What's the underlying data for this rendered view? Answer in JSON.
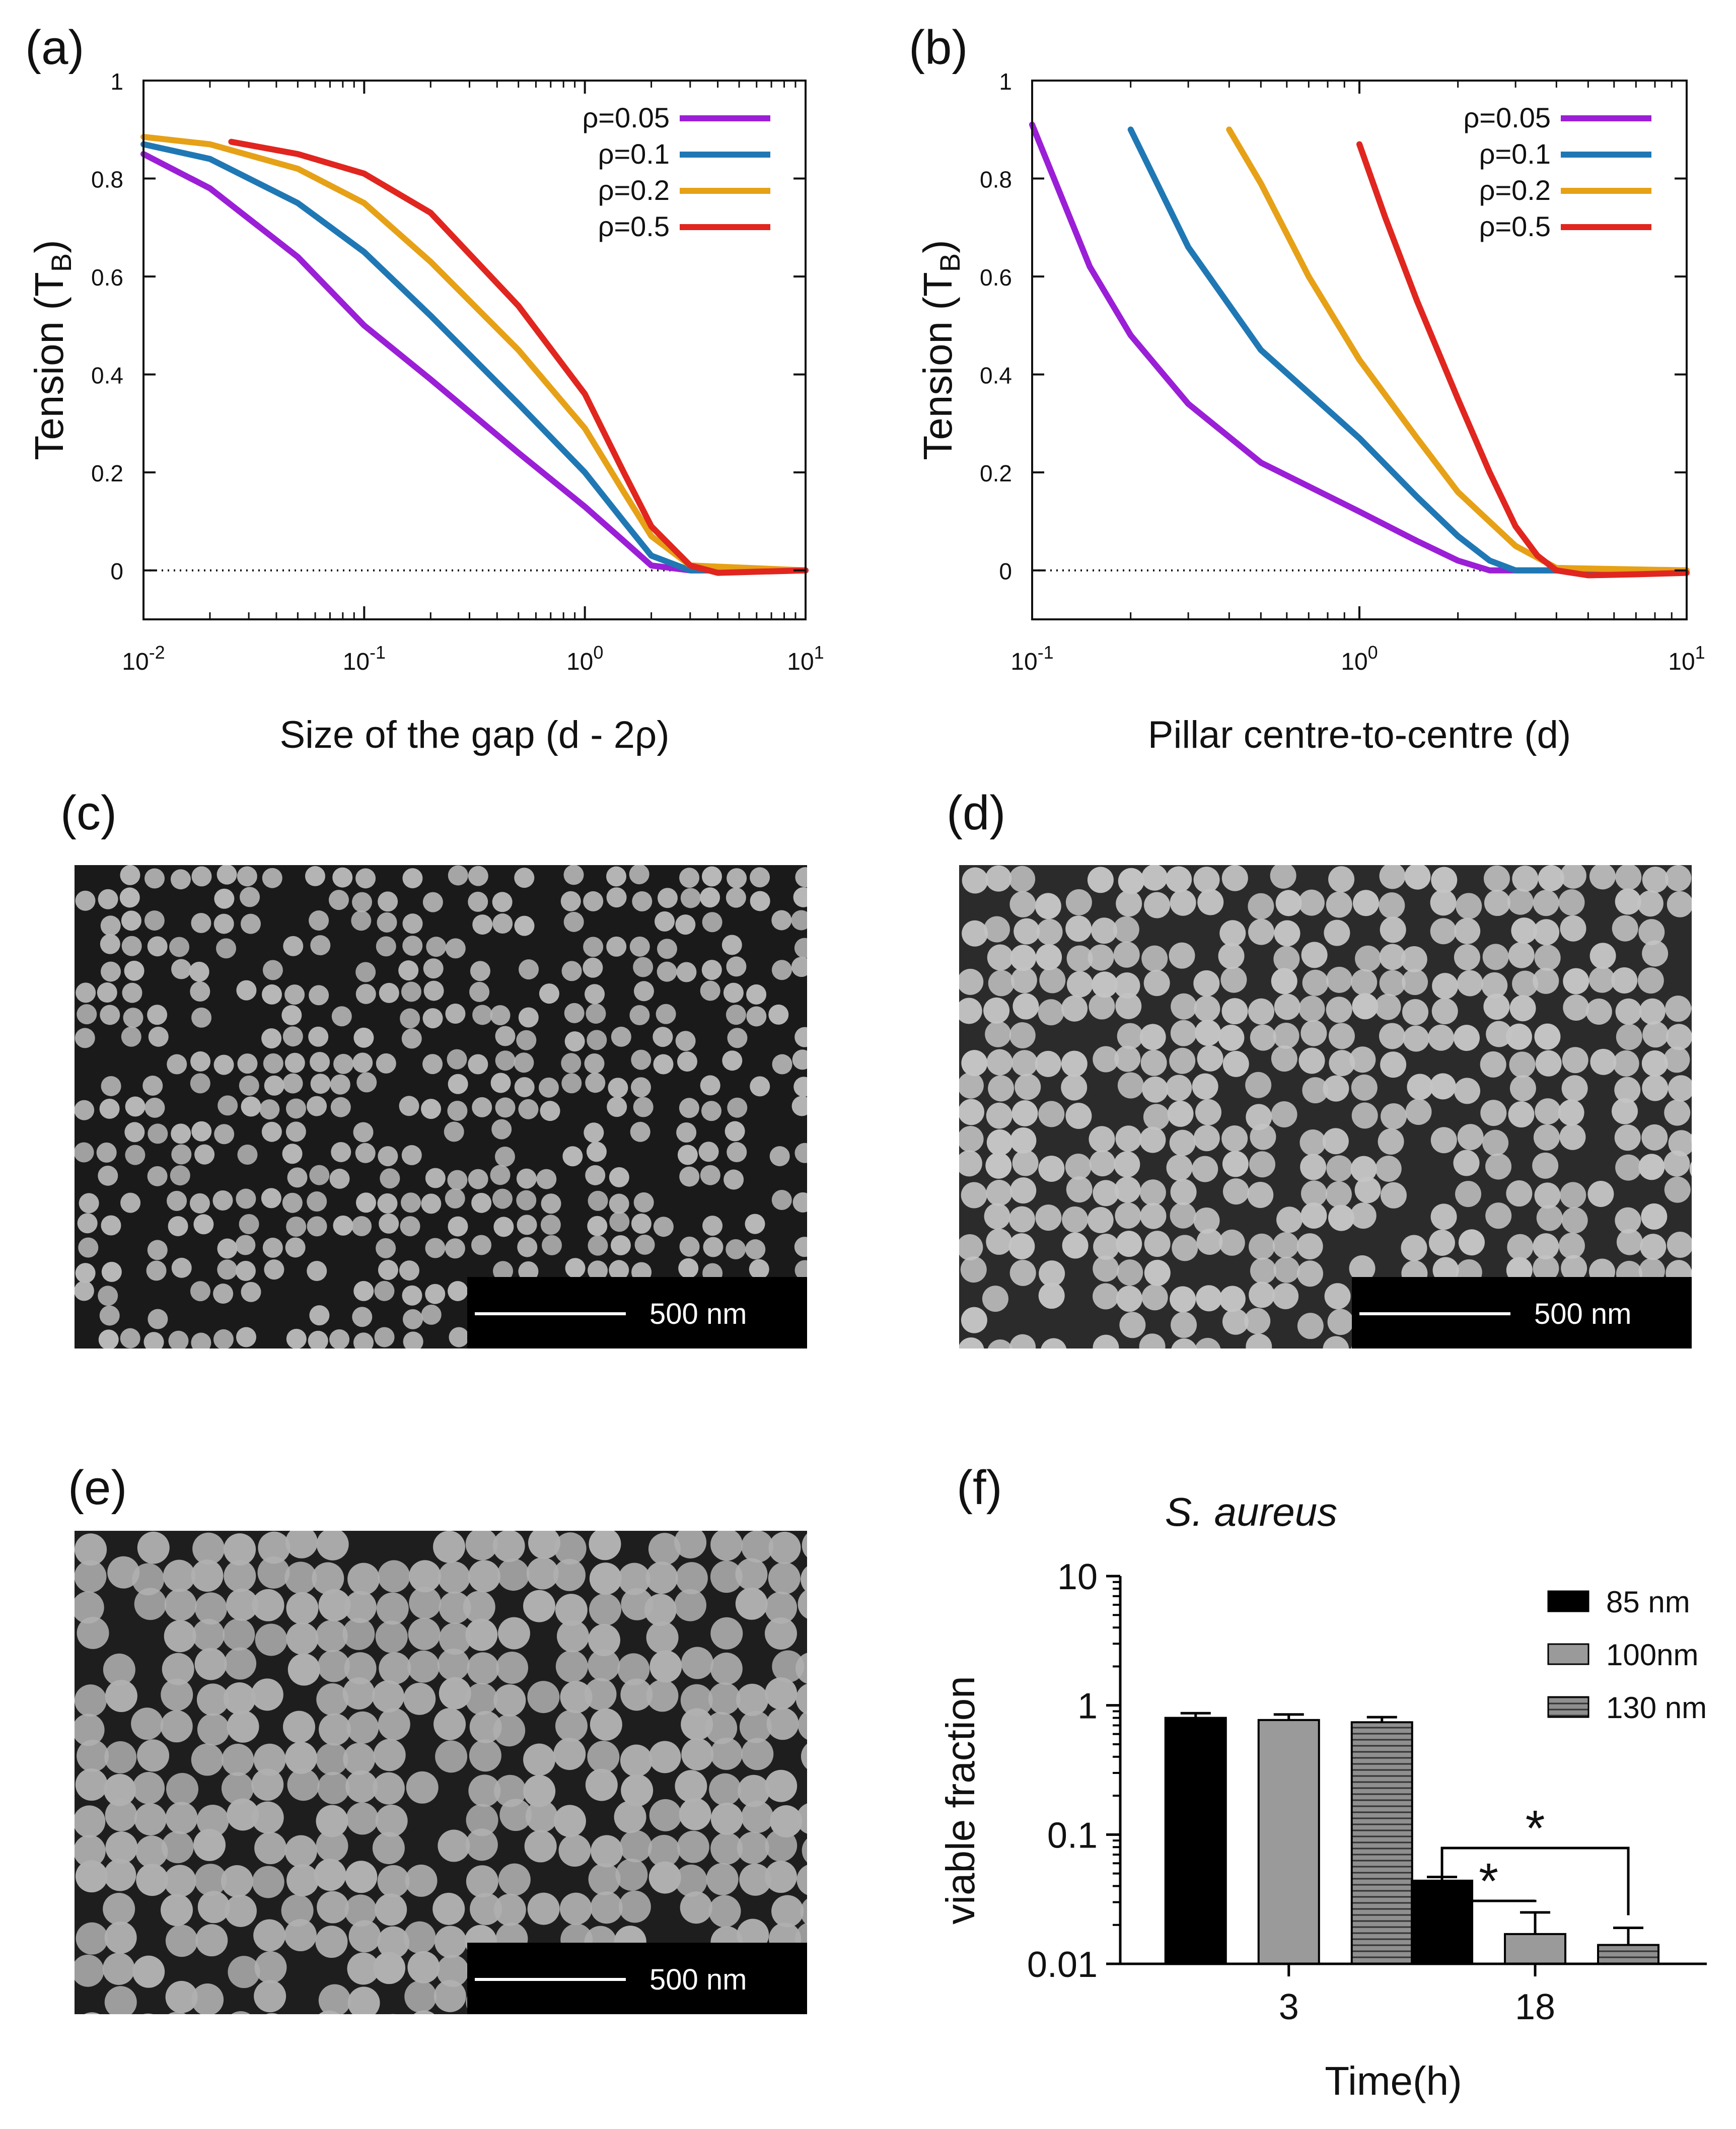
{
  "labels": {
    "a": "(a)",
    "b": "(b)",
    "c": "(c)",
    "d": "(d)",
    "e": "(e)",
    "f": "(f)"
  },
  "colors": {
    "purple": "#9b1fd6",
    "blue": "#1f78b4",
    "orange": "#e6a117",
    "red": "#e0261f",
    "black": "#000000",
    "gray": "#9a9a9a"
  },
  "sem_images": [
    {
      "panel": "c",
      "scale_label": "500 nm"
    },
    {
      "panel": "d",
      "scale_label": "500 nm"
    },
    {
      "panel": "e",
      "scale_label": "500 nm"
    }
  ],
  "chart_data": [
    {
      "panel": "a",
      "type": "line",
      "xscale": "log",
      "xlim": [
        0.01,
        10
      ],
      "ylim": [
        -0.1,
        1.0
      ],
      "xticks": [
        {
          "v": 0.01,
          "base": "10",
          "exp": "-2"
        },
        {
          "v": 0.1,
          "base": "10",
          "exp": "-1"
        },
        {
          "v": 1,
          "base": "10",
          "exp": "0"
        },
        {
          "v": 10,
          "base": "10",
          "exp": "1"
        }
      ],
      "yticks": [
        {
          "v": 0,
          "label": "0"
        },
        {
          "v": 0.2,
          "label": "0.2"
        },
        {
          "v": 0.4,
          "label": "0.4"
        },
        {
          "v": 0.6,
          "label": "0.6"
        },
        {
          "v": 0.8,
          "label": "0.8"
        },
        {
          "v": 1,
          "label": "1"
        }
      ],
      "xlabel": "Size of the gap (d - 2ρ)",
      "ylabel_main": "Tension (T",
      "ylabel_sub": "B",
      "ylabel_end": ")",
      "legend_position": "top-right",
      "zero_line": true,
      "series": [
        {
          "name": "ρ=0.05",
          "color": "#9b1fd6",
          "points": [
            [
              0.01,
              0.85
            ],
            [
              0.02,
              0.78
            ],
            [
              0.05,
              0.64
            ],
            [
              0.1,
              0.5
            ],
            [
              0.2,
              0.39
            ],
            [
              0.5,
              0.24
            ],
            [
              1,
              0.13
            ],
            [
              1.5,
              0.06
            ],
            [
              2,
              0.01
            ],
            [
              3,
              0.0
            ],
            [
              10,
              0.0
            ]
          ]
        },
        {
          "name": "ρ=0.1",
          "color": "#1f78b4",
          "points": [
            [
              0.01,
              0.87
            ],
            [
              0.02,
              0.84
            ],
            [
              0.05,
              0.75
            ],
            [
              0.1,
              0.65
            ],
            [
              0.2,
              0.52
            ],
            [
              0.5,
              0.34
            ],
            [
              1,
              0.2
            ],
            [
              1.5,
              0.1
            ],
            [
              2,
              0.03
            ],
            [
              3,
              0.0
            ],
            [
              10,
              0.0
            ]
          ]
        },
        {
          "name": "ρ=0.2",
          "color": "#e6a117",
          "points": [
            [
              0.01,
              0.885
            ],
            [
              0.02,
              0.87
            ],
            [
              0.05,
              0.82
            ],
            [
              0.1,
              0.75
            ],
            [
              0.2,
              0.63
            ],
            [
              0.5,
              0.45
            ],
            [
              1,
              0.29
            ],
            [
              1.5,
              0.16
            ],
            [
              2,
              0.07
            ],
            [
              3,
              0.01
            ],
            [
              10,
              0.0
            ]
          ]
        },
        {
          "name": "ρ=0.5",
          "color": "#e0261f",
          "points": [
            [
              0.025,
              0.875
            ],
            [
              0.05,
              0.85
            ],
            [
              0.1,
              0.81
            ],
            [
              0.2,
              0.73
            ],
            [
              0.5,
              0.54
            ],
            [
              1,
              0.36
            ],
            [
              1.5,
              0.2
            ],
            [
              2,
              0.09
            ],
            [
              3,
              0.01
            ],
            [
              4,
              -0.005
            ],
            [
              10,
              0.0
            ]
          ]
        }
      ]
    },
    {
      "panel": "b",
      "type": "line",
      "xscale": "log",
      "xlim": [
        0.1,
        10
      ],
      "ylim": [
        -0.1,
        1.0
      ],
      "xticks": [
        {
          "v": 0.1,
          "base": "10",
          "exp": "-1"
        },
        {
          "v": 1,
          "base": "10",
          "exp": "0"
        },
        {
          "v": 10,
          "base": "10",
          "exp": "1"
        }
      ],
      "yticks": [
        {
          "v": 0,
          "label": "0"
        },
        {
          "v": 0.2,
          "label": "0.2"
        },
        {
          "v": 0.4,
          "label": "0.4"
        },
        {
          "v": 0.6,
          "label": "0.6"
        },
        {
          "v": 0.8,
          "label": "0.8"
        },
        {
          "v": 1,
          "label": "1"
        }
      ],
      "xlabel": "Pillar centre-to-centre (d)",
      "ylabel_main": "Tension (T",
      "ylabel_sub": "B",
      "ylabel_end": ")",
      "legend_position": "top-right",
      "zero_line": true,
      "series": [
        {
          "name": "ρ=0.05",
          "color": "#9b1fd6",
          "points": [
            [
              0.1,
              0.91
            ],
            [
              0.15,
              0.62
            ],
            [
              0.2,
              0.48
            ],
            [
              0.3,
              0.34
            ],
            [
              0.5,
              0.22
            ],
            [
              1,
              0.12
            ],
            [
              1.5,
              0.06
            ],
            [
              2,
              0.02
            ],
            [
              2.5,
              0.0
            ],
            [
              10,
              0.0
            ]
          ]
        },
        {
          "name": "ρ=0.1",
          "color": "#1f78b4",
          "points": [
            [
              0.2,
              0.9
            ],
            [
              0.3,
              0.66
            ],
            [
              0.5,
              0.45
            ],
            [
              1,
              0.27
            ],
            [
              1.5,
              0.15
            ],
            [
              2,
              0.07
            ],
            [
              2.5,
              0.02
            ],
            [
              3,
              0.0
            ],
            [
              10,
              0.0
            ]
          ]
        },
        {
          "name": "ρ=0.2",
          "color": "#e6a117",
          "points": [
            [
              0.4,
              0.9
            ],
            [
              0.5,
              0.79
            ],
            [
              0.7,
              0.6
            ],
            [
              1,
              0.43
            ],
            [
              1.5,
              0.27
            ],
            [
              2,
              0.16
            ],
            [
              3,
              0.05
            ],
            [
              4,
              0.005
            ],
            [
              10,
              0.0
            ]
          ]
        },
        {
          "name": "ρ=0.5",
          "color": "#e0261f",
          "points": [
            [
              1,
              0.87
            ],
            [
              1.2,
              0.72
            ],
            [
              1.5,
              0.55
            ],
            [
              2,
              0.35
            ],
            [
              2.5,
              0.2
            ],
            [
              3,
              0.09
            ],
            [
              3.5,
              0.03
            ],
            [
              4,
              0.0
            ],
            [
              5,
              -0.01
            ],
            [
              7,
              -0.008
            ],
            [
              10,
              -0.005
            ]
          ]
        }
      ]
    },
    {
      "panel": "f",
      "type": "bar",
      "title": "S. aureus",
      "yscale": "log",
      "ylim": [
        0.01,
        10
      ],
      "yticks": [
        {
          "v": 0.01,
          "label": "0.01"
        },
        {
          "v": 0.1,
          "label": "0.1"
        },
        {
          "v": 1,
          "label": "1"
        },
        {
          "v": 10,
          "label": "10"
        }
      ],
      "categories": [
        "3",
        "18"
      ],
      "xlabel": "Time(h)",
      "ylabel": "viable fraction",
      "legend_position": "top-right",
      "series": [
        {
          "name": "85 nm",
          "style": "black",
          "values": [
            0.8,
            0.044
          ],
          "errors": [
            0.07,
            0.003
          ]
        },
        {
          "name": "100nm",
          "style": "gray",
          "values": [
            0.77,
            0.017
          ],
          "errors": [
            0.08,
            0.008
          ]
        },
        {
          "name": "130 nm",
          "style": "hatched",
          "values": [
            0.74,
            0.014
          ],
          "errors": [
            0.07,
            0.005
          ]
        }
      ],
      "significance": [
        {
          "label": "*",
          "from": "85 nm",
          "to": "100nm",
          "category": "18"
        },
        {
          "label": "*",
          "from": "85 nm",
          "to": "130 nm",
          "category": "18"
        }
      ]
    }
  ]
}
